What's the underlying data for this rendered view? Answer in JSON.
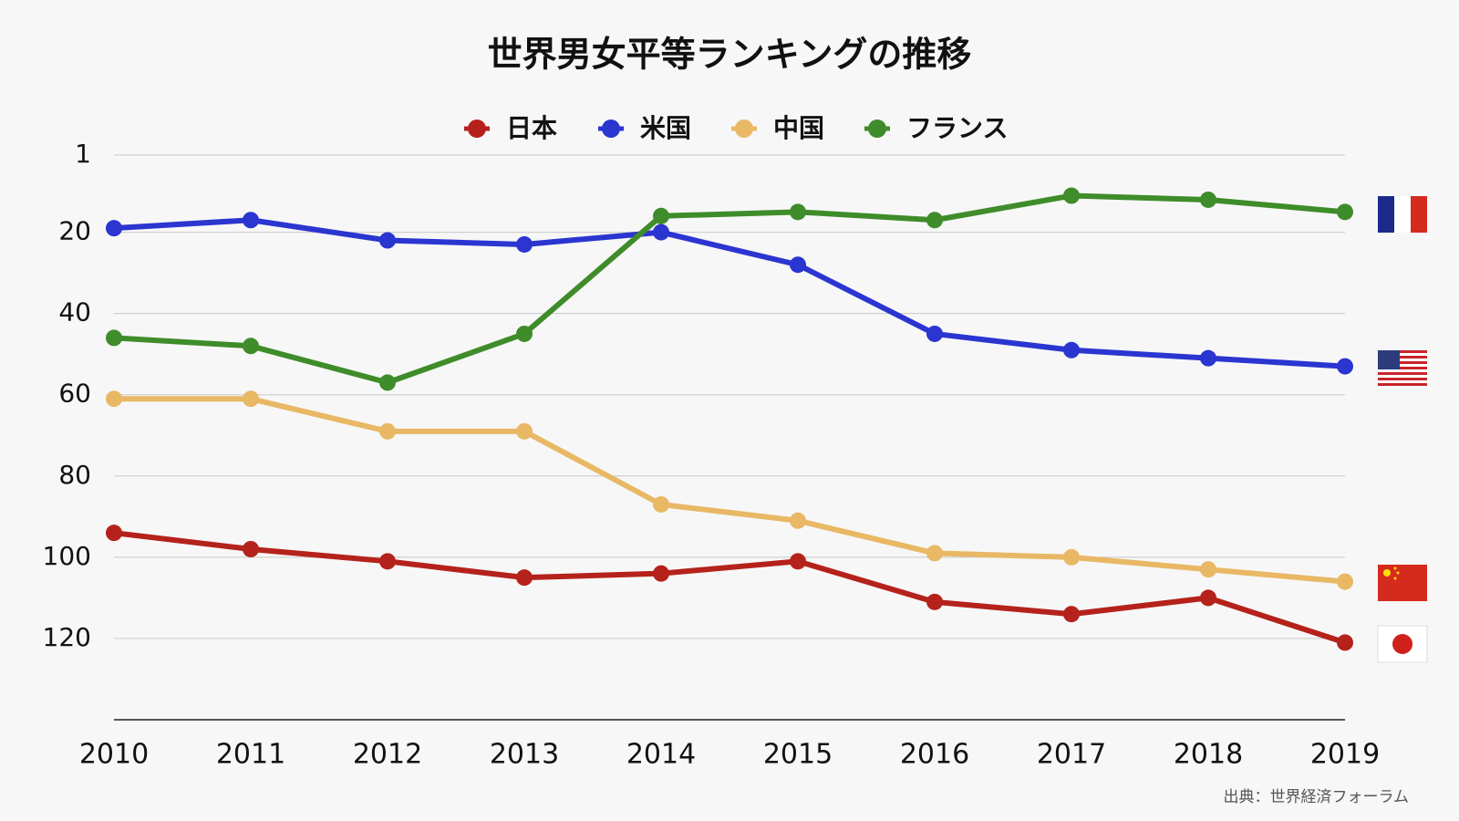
{
  "chart_data": {
    "type": "line",
    "title": "世界男女平等ランキングの推移",
    "categories": [
      "2010",
      "2011",
      "2012",
      "2013",
      "2014",
      "2015",
      "2016",
      "2017",
      "2018",
      "2019"
    ],
    "series": [
      {
        "name": "日本",
        "color": "#b5221b",
        "values": [
          94,
          98,
          101,
          105,
          104,
          101,
          111,
          114,
          110,
          121
        ]
      },
      {
        "name": "米国",
        "color": "#2b35d0",
        "values": [
          19,
          17,
          22,
          23,
          20,
          28,
          45,
          49,
          51,
          53
        ]
      },
      {
        "name": "中国",
        "color": "#e9b865",
        "values": [
          61,
          61,
          69,
          69,
          87,
          91,
          99,
          100,
          103,
          106
        ]
      },
      {
        "name": "フランス",
        "color": "#3f8c2a",
        "values": [
          46,
          48,
          57,
          45,
          16,
          15,
          17,
          11,
          12,
          15
        ]
      }
    ],
    "ylim": [
      1,
      140
    ],
    "yticks": [
      1,
      20,
      40,
      60,
      80,
      100,
      120
    ],
    "inverted": true,
    "grid": true,
    "source": "出典：世界経済フォーラム"
  }
}
